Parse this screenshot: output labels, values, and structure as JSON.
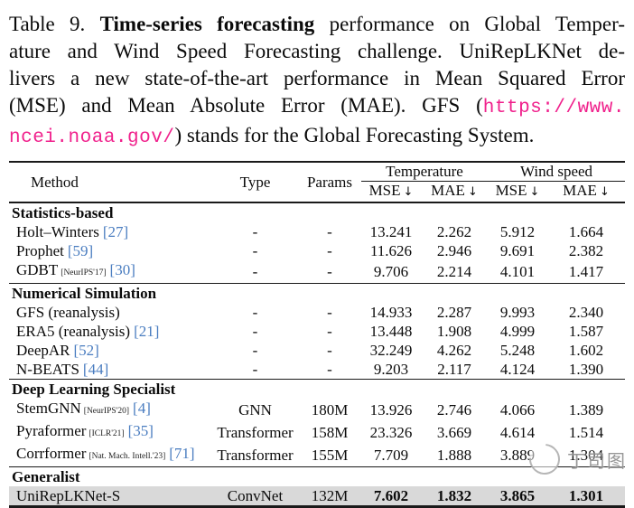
{
  "colors": {
    "citation_blue": "#4a7dc0",
    "url_pink": "#f0218c",
    "highlight_row_gray": "#d9d9d9",
    "rule_black": "#1a1a1a"
  },
  "caption": {
    "lines": [
      {
        "segments": [
          "Table 9. ",
          "Time-series forecasting",
          " performance on Global Temper-"
        ]
      },
      {
        "segments": [
          "ature and Wind Speed Forecasting challenge. UniRepLKNet de-"
        ]
      },
      {
        "segments": [
          "livers a new state-of-the-art performance in Mean Squared Error"
        ]
      },
      {
        "segments": [
          "(MSE) and Mean Absolute Error (MAE). GFS (",
          "https://www."
        ]
      },
      {
        "segments": [
          "ncei.noaa.gov/",
          ") stands for the Global Forecasting System."
        ]
      }
    ],
    "url_full": "https://www.ncei.noaa.gov/"
  },
  "table": {
    "header": {
      "method": "Method",
      "type": "Type",
      "params": "Params",
      "temperature": "Temperature",
      "wind_speed": "Wind speed",
      "sub": [
        "MSE",
        "MAE",
        "MSE",
        "MAE"
      ],
      "arrow": "↓"
    },
    "sections": [
      {
        "title": "Statistics-based",
        "rows": [
          {
            "method": "Holt–Winters",
            "venue": "",
            "cite": "[27]",
            "type": "-",
            "params": "-",
            "values": [
              "13.241",
              "2.262",
              "5.912",
              "1.664"
            ],
            "bold_values": false,
            "highlight": false
          },
          {
            "method": "Prophet",
            "venue": "",
            "cite": "[59]",
            "type": "-",
            "params": "-",
            "values": [
              "11.626",
              "2.946",
              "9.691",
              "2.382"
            ],
            "bold_values": false,
            "highlight": false
          },
          {
            "method": "GDBT",
            "venue": "[NeurIPS'17]",
            "cite": "[30]",
            "type": "-",
            "params": "-",
            "values": [
              "9.706",
              "2.214",
              "4.101",
              "1.417"
            ],
            "bold_values": false,
            "highlight": false
          }
        ]
      },
      {
        "title": "Numerical Simulation",
        "rows": [
          {
            "method": "GFS (reanalysis)",
            "venue": "",
            "cite": "",
            "type": "-",
            "params": "-",
            "values": [
              "14.933",
              "2.287",
              "9.993",
              "2.340"
            ],
            "bold_values": false,
            "highlight": false
          },
          {
            "method": "ERA5 (reanalysis)",
            "venue": "",
            "cite": "[21]",
            "type": "-",
            "params": "-",
            "values": [
              "13.448",
              "1.908",
              "4.999",
              "1.587"
            ],
            "bold_values": false,
            "highlight": false
          },
          {
            "method": "DeepAR",
            "venue": "",
            "cite": "[52]",
            "type": "-",
            "params": "-",
            "values": [
              "32.249",
              "4.262",
              "5.248",
              "1.602"
            ],
            "bold_values": false,
            "highlight": false
          },
          {
            "method": "N-BEATS",
            "venue": "",
            "cite": "[44]",
            "type": "-",
            "params": "-",
            "values": [
              "9.203",
              "2.117",
              "4.124",
              "1.390"
            ],
            "bold_values": false,
            "highlight": false
          }
        ]
      },
      {
        "title": "Deep Learning Specialist",
        "rows": [
          {
            "method": "StemGNN",
            "venue": "[NeurIPS'20]",
            "cite": "[4]",
            "type": "GNN",
            "params": "180M",
            "values": [
              "13.926",
              "2.746",
              "4.066",
              "1.389"
            ],
            "bold_values": false,
            "highlight": false
          },
          {
            "method": "Pyraformer",
            "venue": "[ICLR'21]",
            "cite": "[35]",
            "type": "Transformer",
            "params": "158M",
            "values": [
              "23.326",
              "3.669",
              "4.614",
              "1.514"
            ],
            "bold_values": false,
            "highlight": false
          },
          {
            "method": "Corrformer",
            "venue": "[Nat. Mach. Intell.'23]",
            "cite": "[71]",
            "type": "Transformer",
            "params": "155M",
            "values": [
              "7.709",
              "1.888",
              "3.889",
              "1.304"
            ],
            "bold_values": false,
            "highlight": false
          }
        ]
      },
      {
        "title": "Generalist",
        "rows": [
          {
            "method": "UniRepLKNet-S",
            "venue": "",
            "cite": "",
            "type": "ConvNet",
            "params": "132M",
            "values": [
              "7.602",
              "1.832",
              "3.865",
              "1.301"
            ],
            "bold_values": true,
            "highlight": true
          }
        ]
      }
    ]
  },
  "watermark": {
    "text": "丁司图",
    "icon": "lens-circle-icon"
  }
}
